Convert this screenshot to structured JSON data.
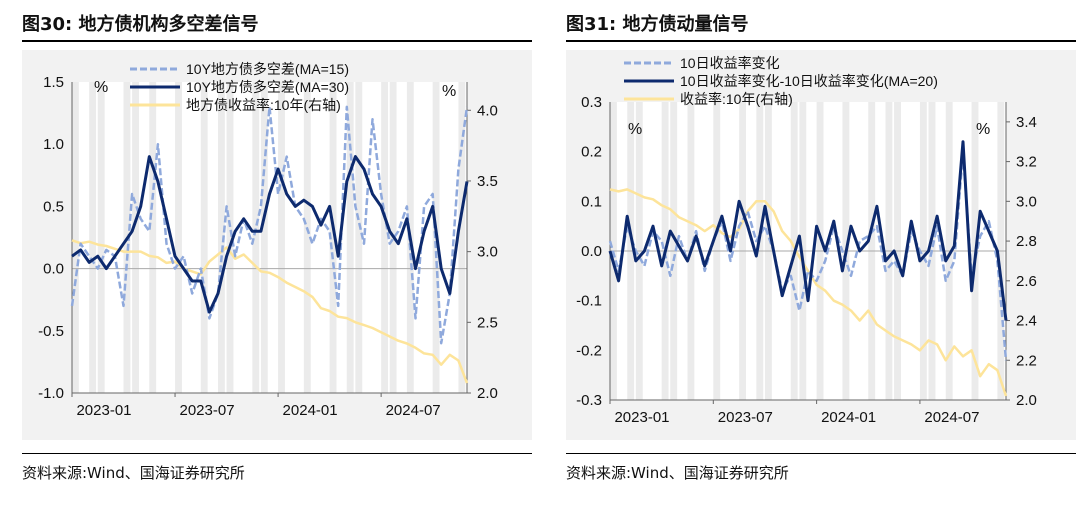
{
  "left": {
    "figure_title": "图30:  地方债机构多空差信号",
    "source": "资料来源:Wind、国海证券研究所"
  },
  "right": {
    "figure_title": "图31:  地方债动量信号",
    "source": "资料来源:Wind、国海证券研究所"
  },
  "colors": {
    "light_blue": "#8fa9dc",
    "navy": "#0d2a6e",
    "yellow": "#fde49a",
    "shade": "#ebebeb",
    "grid": "#aaaaaa"
  },
  "chart_data": [
    {
      "type": "line",
      "left_unit": "%",
      "right_unit": "%",
      "ylim": [
        -1.0,
        1.5
      ],
      "yticks": [
        "-1.0",
        "-0.5",
        "0.0",
        "0.5",
        "1.0",
        "1.5"
      ],
      "y2lim": [
        2.0,
        4.2
      ],
      "y2ticks": [
        "2.0",
        "2.5",
        "3.0",
        "3.5",
        "4.0"
      ],
      "x_tick_labels": [
        "2023-01",
        "2023-07",
        "2024-01",
        "2024-07"
      ],
      "x_months": [
        0,
        6,
        12,
        18
      ],
      "x_span_months": 23,
      "legend_position": "top-center",
      "series": [
        {
          "name": "10Y地方债多空差(MA=15)",
          "axis": "left",
          "style": "dashed",
          "color": "#8fa9dc",
          "x": [
            0,
            0.5,
            1,
            1.5,
            2,
            2.5,
            3,
            3.5,
            4,
            4.5,
            5,
            5.5,
            6,
            6.5,
            7,
            7.5,
            8,
            8.5,
            9,
            9.5,
            10,
            10.5,
            11,
            11.5,
            12,
            12.5,
            13,
            13.5,
            14,
            14.5,
            15,
            15.5,
            16,
            16.5,
            17,
            17.5,
            18,
            18.5,
            19,
            19.5,
            20,
            20.5,
            21,
            21.5,
            22,
            22.5,
            23
          ],
          "y": [
            -0.3,
            0.2,
            0.1,
            0.0,
            0.15,
            0.1,
            -0.3,
            0.6,
            0.4,
            0.3,
            1.0,
            0.2,
            0.0,
            0.1,
            -0.2,
            0.0,
            -0.4,
            -0.2,
            0.5,
            0.1,
            0.4,
            0.2,
            0.5,
            1.3,
            0.6,
            0.9,
            0.5,
            0.4,
            0.2,
            0.4,
            0.3,
            -0.3,
            1.3,
            0.5,
            0.2,
            1.2,
            0.6,
            0.2,
            0.3,
            0.5,
            -0.4,
            0.5,
            0.6,
            -0.6,
            -0.2,
            0.8,
            1.3
          ]
        },
        {
          "name": "10Y地方债多空差(MA=30)",
          "axis": "left",
          "style": "solid",
          "color": "#0d2a6e",
          "x": [
            0,
            0.5,
            1,
            1.5,
            2,
            2.5,
            3,
            3.5,
            4,
            4.5,
            5,
            5.5,
            6,
            6.5,
            7,
            7.5,
            8,
            8.5,
            9,
            9.5,
            10,
            10.5,
            11,
            11.5,
            12,
            12.5,
            13,
            13.5,
            14,
            14.5,
            15,
            15.5,
            16,
            16.5,
            17,
            17.5,
            18,
            18.5,
            19,
            19.5,
            20,
            20.5,
            21,
            21.5,
            22,
            22.5,
            23
          ],
          "y": [
            0.1,
            0.15,
            0.05,
            0.1,
            0.0,
            0.1,
            0.2,
            0.3,
            0.5,
            0.9,
            0.7,
            0.4,
            0.1,
            0.0,
            -0.1,
            -0.1,
            -0.35,
            -0.2,
            0.1,
            0.3,
            0.4,
            0.3,
            0.3,
            0.6,
            0.8,
            0.6,
            0.5,
            0.55,
            0.5,
            0.35,
            0.5,
            0.1,
            0.7,
            0.9,
            0.8,
            0.6,
            0.5,
            0.3,
            0.2,
            0.4,
            0.0,
            0.3,
            0.5,
            0.0,
            -0.2,
            0.3,
            0.7
          ]
        },
        {
          "name": "地方债收益率:10年(右轴)",
          "axis": "right",
          "style": "solid",
          "color": "#fde49a",
          "x": [
            0,
            0.5,
            1,
            1.5,
            2,
            2.5,
            3,
            3.5,
            4,
            4.5,
            5,
            5.5,
            6,
            6.5,
            7,
            7.5,
            8,
            8.5,
            9,
            9.5,
            10,
            10.5,
            11,
            11.5,
            12,
            12.5,
            13,
            13.5,
            14,
            14.5,
            15,
            15.5,
            16,
            16.5,
            17,
            17.5,
            18,
            18.5,
            19,
            19.5,
            20,
            20.5,
            21,
            21.5,
            22,
            22.5,
            23
          ],
          "y": [
            3.08,
            3.06,
            3.07,
            3.05,
            3.04,
            3.02,
            3.0,
            3.0,
            3.0,
            2.97,
            2.96,
            2.92,
            2.93,
            2.88,
            2.86,
            2.84,
            2.93,
            2.98,
            3.03,
            2.95,
            2.98,
            2.92,
            2.86,
            2.85,
            2.82,
            2.78,
            2.75,
            2.72,
            2.68,
            2.6,
            2.58,
            2.54,
            2.53,
            2.5,
            2.48,
            2.46,
            2.43,
            2.4,
            2.37,
            2.35,
            2.32,
            2.28,
            2.27,
            2.2,
            2.27,
            2.23,
            2.07
          ]
        }
      ]
    },
    {
      "type": "line",
      "left_unit": "%",
      "right_unit": "%",
      "ylim": [
        -0.3,
        0.3
      ],
      "yticks": [
        "-0.3",
        "-0.2",
        "-0.1",
        "0.0",
        "0.1",
        "0.2",
        "0.3"
      ],
      "y2lim": [
        2.0,
        3.5
      ],
      "y2ticks": [
        "2.0",
        "2.2",
        "2.4",
        "2.6",
        "2.8",
        "3.0",
        "3.2",
        "3.4"
      ],
      "x_tick_labels": [
        "2023-01",
        "2023-07",
        "2024-01",
        "2024-07"
      ],
      "x_months": [
        0,
        6,
        12,
        18
      ],
      "x_span_months": 23,
      "legend_position": "top-center",
      "series": [
        {
          "name": "10日收益率变化",
          "axis": "left",
          "style": "dashed",
          "color": "#8fa9dc",
          "x": [
            0,
            0.5,
            1,
            1.5,
            2,
            2.5,
            3,
            3.5,
            4,
            4.5,
            5,
            5.5,
            6,
            6.5,
            7,
            7.5,
            8,
            8.5,
            9,
            9.5,
            10,
            10.5,
            11,
            11.5,
            12,
            12.5,
            13,
            13.5,
            14,
            14.5,
            15,
            15.5,
            16,
            16.5,
            17,
            17.5,
            18,
            18.5,
            19,
            19.5,
            20,
            20.5,
            21,
            21.5,
            22,
            22.5,
            23
          ],
          "y": [
            0.02,
            -0.04,
            0.05,
            0.0,
            -0.03,
            0.04,
            0.02,
            -0.05,
            0.03,
            -0.02,
            0.04,
            -0.04,
            0.02,
            0.06,
            -0.02,
            0.05,
            0.08,
            0.02,
            0.05,
            0.0,
            -0.08,
            -0.05,
            -0.12,
            -0.04,
            -0.06,
            -0.02,
            0.05,
            0.0,
            -0.05,
            0.02,
            0.03,
            0.05,
            -0.04,
            -0.02,
            -0.05,
            0.04,
            0.0,
            -0.03,
            0.05,
            -0.06,
            -0.02,
            0.2,
            -0.05,
            0.03,
            0.06,
            -0.02,
            -0.22
          ]
        },
        {
          "name": "10日收益率变化-10日收益率变化(MA=20)",
          "axis": "left",
          "style": "solid",
          "color": "#0d2a6e",
          "x": [
            0,
            0.5,
            1,
            1.5,
            2,
            2.5,
            3,
            3.5,
            4,
            4.5,
            5,
            5.5,
            6,
            6.5,
            7,
            7.5,
            8,
            8.5,
            9,
            9.5,
            10,
            10.5,
            11,
            11.5,
            12,
            12.5,
            13,
            13.5,
            14,
            14.5,
            15,
            15.5,
            16,
            16.5,
            17,
            17.5,
            18,
            18.5,
            19,
            19.5,
            20,
            20.5,
            21,
            21.5,
            22,
            22.5,
            23
          ],
          "y": [
            0.0,
            -0.06,
            0.07,
            -0.02,
            0.0,
            0.05,
            -0.03,
            0.04,
            0.01,
            -0.02,
            0.03,
            -0.03,
            0.02,
            0.07,
            0.0,
            0.1,
            0.05,
            -0.01,
            0.09,
            0.0,
            -0.09,
            -0.03,
            0.03,
            -0.1,
            0.05,
            0.0,
            0.06,
            -0.04,
            0.05,
            0.0,
            0.02,
            0.09,
            -0.02,
            0.0,
            -0.05,
            0.06,
            -0.02,
            0.0,
            0.07,
            -0.02,
            0.01,
            0.22,
            -0.08,
            0.08,
            0.04,
            0.0,
            -0.14
          ]
        },
        {
          "name": "收益率:10年(右轴)",
          "axis": "right",
          "style": "solid",
          "color": "#fde49a",
          "x": [
            0,
            0.5,
            1,
            1.5,
            2,
            2.5,
            3,
            3.5,
            4,
            4.5,
            5,
            5.5,
            6,
            6.5,
            7,
            7.5,
            8,
            8.5,
            9,
            9.5,
            10,
            10.5,
            11,
            11.5,
            12,
            12.5,
            13,
            13.5,
            14,
            14.5,
            15,
            15.5,
            16,
            16.5,
            17,
            17.5,
            18,
            18.5,
            19,
            19.5,
            20,
            20.5,
            21,
            21.5,
            22,
            22.5,
            23
          ],
          "y": [
            3.06,
            3.05,
            3.06,
            3.04,
            3.02,
            3.01,
            2.98,
            2.96,
            2.92,
            2.9,
            2.88,
            2.85,
            2.88,
            2.84,
            2.82,
            2.86,
            2.95,
            3.0,
            3.0,
            2.95,
            2.85,
            2.8,
            2.72,
            2.65,
            2.58,
            2.55,
            2.5,
            2.48,
            2.45,
            2.4,
            2.45,
            2.38,
            2.35,
            2.32,
            2.3,
            2.28,
            2.25,
            2.3,
            2.28,
            2.2,
            2.27,
            2.22,
            2.25,
            2.12,
            2.18,
            2.15,
            2.02
          ]
        }
      ]
    }
  ]
}
